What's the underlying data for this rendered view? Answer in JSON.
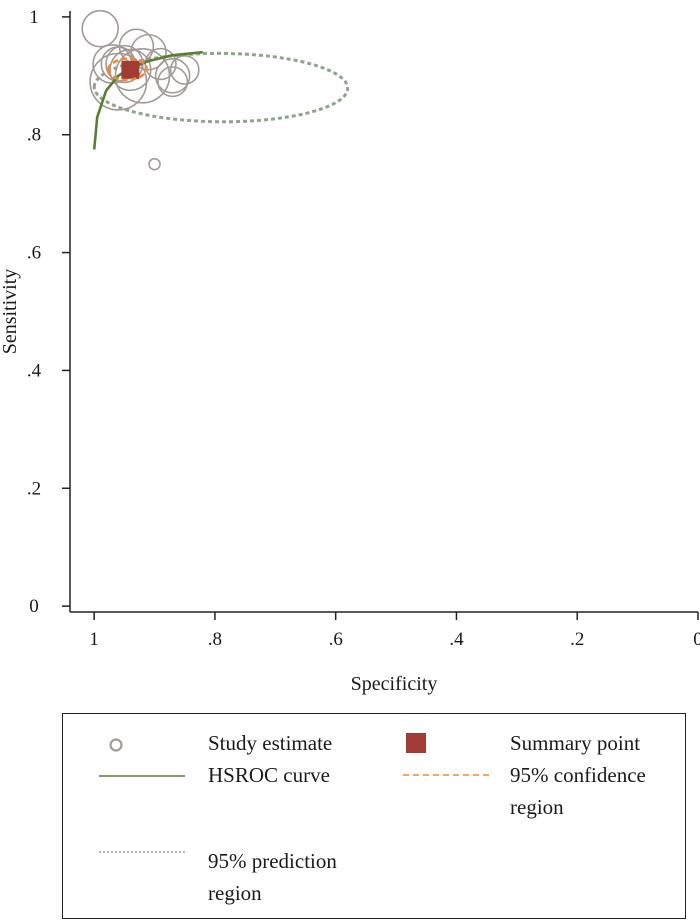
{
  "chart_data": {
    "type": "scatter",
    "xlabel": "Specificity",
    "ylabel": "Sensitivity",
    "xlim": [
      1.04,
      0.0
    ],
    "ylim": [
      -0.01,
      1.01
    ],
    "x_axis_reversed": true,
    "xticks": [
      1,
      0.8,
      0.6,
      0.4,
      0.2,
      0
    ],
    "xtick_labels": [
      "1",
      ".8",
      ".6",
      ".4",
      ".2",
      "0"
    ],
    "yticks": [
      0,
      0.2,
      0.4,
      0.6,
      0.8,
      1
    ],
    "ytick_labels": [
      "0",
      ".2",
      ".4",
      ".6",
      ".8",
      "1"
    ],
    "grid": false,
    "legend_position": "bottom",
    "colors": {
      "study": "#a39a97",
      "summary": "#a23a35",
      "hsroc": "#5a7f33",
      "confidence": "#ee8a3a",
      "prediction": "#8da58a"
    },
    "series": [
      {
        "name": "Study estimate",
        "kind": "scatter",
        "points": [
          {
            "specificity": 0.99,
            "sensitivity": 0.98,
            "weight": 1.2
          },
          {
            "specificity": 0.97,
            "sensitivity": 0.92,
            "weight": 1.5
          },
          {
            "specificity": 0.93,
            "sensitivity": 0.95,
            "weight": 1.0
          },
          {
            "specificity": 0.91,
            "sensitivity": 0.94,
            "weight": 1.1
          },
          {
            "specificity": 0.96,
            "sensitivity": 0.89,
            "weight": 4.5
          },
          {
            "specificity": 0.92,
            "sensitivity": 0.9,
            "weight": 4.0
          },
          {
            "specificity": 0.94,
            "sensitivity": 0.91,
            "weight": 1.8
          },
          {
            "specificity": 0.95,
            "sensitivity": 0.92,
            "weight": 1.3
          },
          {
            "specificity": 0.96,
            "sensitivity": 0.92,
            "weight": 1.0
          },
          {
            "specificity": 0.89,
            "sensitivity": 0.92,
            "weight": 0.7
          },
          {
            "specificity": 0.87,
            "sensitivity": 0.9,
            "weight": 1.0
          },
          {
            "specificity": 0.85,
            "sensitivity": 0.91,
            "weight": 0.5
          },
          {
            "specificity": 0.87,
            "sensitivity": 0.89,
            "weight": 0.6
          },
          {
            "specificity": 0.9,
            "sensitivity": 0.75,
            "weight": 0.3
          }
        ]
      },
      {
        "name": "Summary point",
        "kind": "summary",
        "specificity": 0.94,
        "sensitivity": 0.91
      },
      {
        "name": "HSROC curve",
        "kind": "curve",
        "points": [
          {
            "specificity": 1.0,
            "sensitivity": 0.775
          },
          {
            "specificity": 0.995,
            "sensitivity": 0.83
          },
          {
            "specificity": 0.98,
            "sensitivity": 0.875
          },
          {
            "specificity": 0.96,
            "sensitivity": 0.9
          },
          {
            "specificity": 0.94,
            "sensitivity": 0.913
          },
          {
            "specificity": 0.91,
            "sensitivity": 0.925
          },
          {
            "specificity": 0.87,
            "sensitivity": 0.935
          },
          {
            "specificity": 0.82,
            "sensitivity": 0.94
          }
        ]
      },
      {
        "name": "95% confidence region",
        "kind": "ellipse",
        "center": {
          "specificity": 0.945,
          "sensitivity": 0.911
        },
        "radius": {
          "specificity": 0.033,
          "sensitivity": 0.018
        },
        "rotation_deg": -15
      },
      {
        "name": "95% prediction region",
        "kind": "ellipse",
        "center": {
          "specificity": 0.79,
          "sensitivity": 0.88
        },
        "radius": {
          "specificity": 0.21,
          "sensitivity": 0.058
        },
        "rotation_deg": 2
      }
    ]
  },
  "legend": {
    "study": "Study estimate",
    "summary": "Summary point",
    "hsroc": "HSROC curve",
    "confidence_line1": "95% confidence",
    "confidence_line2": "region",
    "prediction_line1": "95% prediction",
    "prediction_line2": "region"
  }
}
